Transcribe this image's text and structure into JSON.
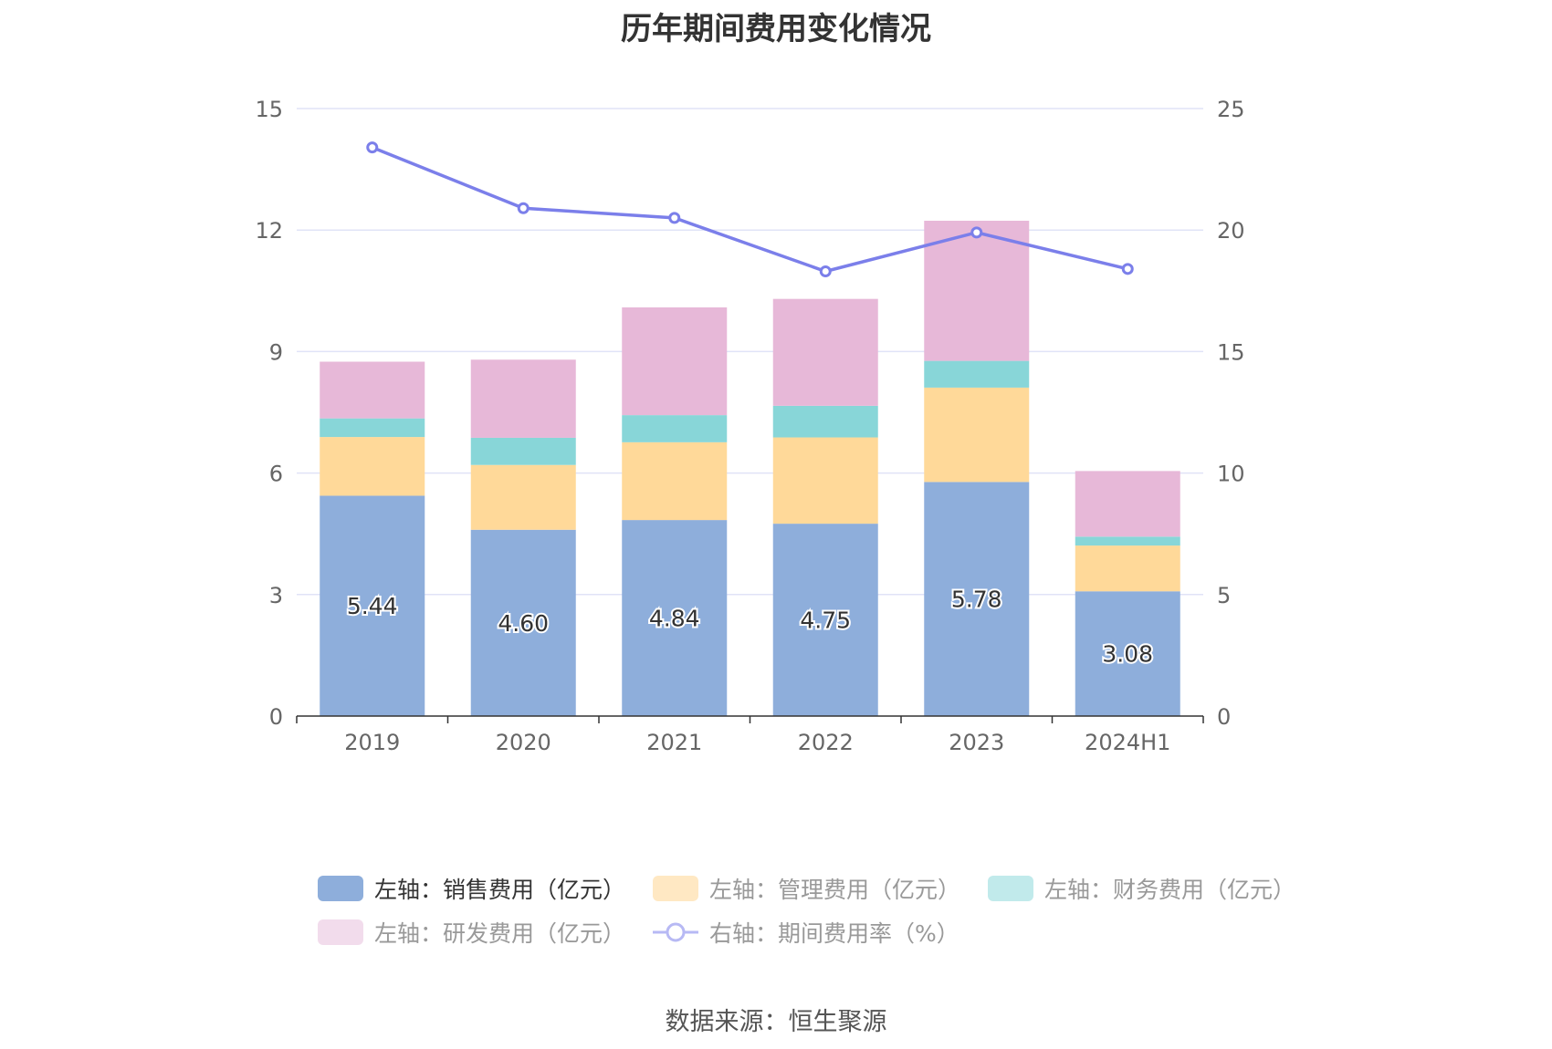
{
  "chart_data": {
    "type": "bar",
    "title": "历年期间费用变化情况",
    "categories": [
      "2019",
      "2020",
      "2021",
      "2022",
      "2023",
      "2024H1"
    ],
    "series": [
      {
        "name": "左轴：销售费用（亿元）",
        "axis": "left",
        "color": "#8eaedb",
        "legend_color": "#8eaedb",
        "values": [
          5.44,
          4.6,
          4.84,
          4.75,
          5.78,
          3.08
        ],
        "labels": [
          "5.44",
          "4.60",
          "4.84",
          "4.75",
          "5.78",
          "3.08"
        ]
      },
      {
        "name": "左轴：管理费用（亿元）",
        "axis": "left",
        "color": "#ffd999",
        "legend_color": "#ffe8c3",
        "values": [
          1.45,
          1.6,
          1.92,
          2.13,
          2.33,
          1.13
        ]
      },
      {
        "name": "左轴：财务费用（亿元）",
        "axis": "left",
        "color": "#88d6d8",
        "legend_color": "#c1eaeb",
        "values": [
          0.46,
          0.67,
          0.67,
          0.78,
          0.66,
          0.22
        ]
      },
      {
        "name": "左轴：研发费用（亿元）",
        "axis": "left",
        "color": "#e7b8d8",
        "legend_color": "#f2dcec",
        "values": [
          1.4,
          1.93,
          2.66,
          2.64,
          3.46,
          1.62
        ]
      },
      {
        "name": "右轴：期间费用率（%）",
        "axis": "right",
        "type": "line",
        "color": "#7b7fea",
        "legend_color": "#b7b9f4",
        "values": [
          23.4,
          20.9,
          20.5,
          18.3,
          19.9,
          18.4
        ]
      }
    ],
    "y_left": {
      "min": 0,
      "max": 15,
      "ticks": [
        "0",
        "3",
        "6",
        "9",
        "12",
        "15"
      ]
    },
    "y_right": {
      "min": 0,
      "max": 25,
      "ticks": [
        "0",
        "5",
        "10",
        "15",
        "20",
        "25"
      ]
    },
    "grid": true,
    "legend_position": "bottom"
  },
  "source": "数据来源：恒生聚源"
}
